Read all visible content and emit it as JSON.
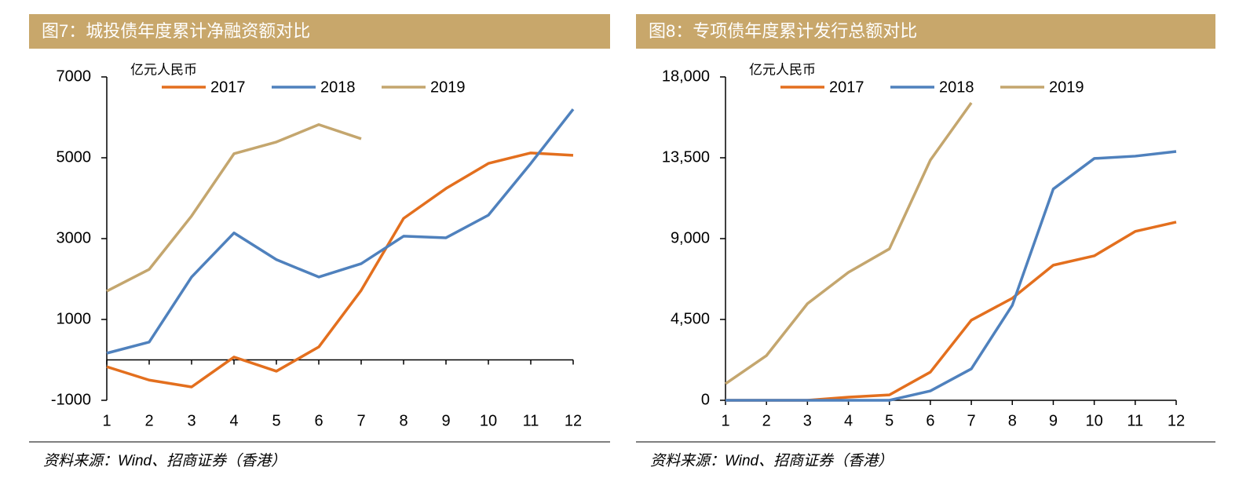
{
  "chart_data": [
    {
      "type": "line",
      "title": "图7：城投债年度累计净融资额对比",
      "unit_label": "亿元人民币",
      "source": "资料来源：Wind、招商证券（香港）",
      "categories": [
        "1",
        "2",
        "3",
        "4",
        "5",
        "6",
        "7",
        "8",
        "9",
        "10",
        "11",
        "12"
      ],
      "series": [
        {
          "name": "2017",
          "color": "#e36f1e",
          "values": [
            -170,
            -500,
            -670,
            70,
            -280,
            320,
            1720,
            3500,
            4240,
            4860,
            5120,
            5060
          ]
        },
        {
          "name": "2018",
          "color": "#4f81bd",
          "values": [
            165,
            440,
            2050,
            3140,
            2480,
            2050,
            2380,
            3060,
            3020,
            3580,
            4860,
            6200
          ]
        },
        {
          "name": "2019",
          "color": "#c4a66e",
          "values": [
            1700,
            2240,
            3560,
            5100,
            5390,
            5820,
            5470,
            null,
            null,
            null,
            null,
            null
          ]
        }
      ],
      "ylim": [
        -1000,
        7000
      ],
      "yticks": [
        -1000,
        1000,
        3000,
        5000,
        7000
      ]
    },
    {
      "type": "line",
      "title": "图8：专项债年度累计发行总额对比",
      "unit_label": "亿元人民币",
      "source": "资料来源：Wind、招商证券（香港）",
      "categories": [
        "1",
        "2",
        "3",
        "4",
        "5",
        "6",
        "7",
        "8",
        "9",
        "10",
        "11",
        "12"
      ],
      "series": [
        {
          "name": "2017",
          "color": "#e36f1e",
          "values": [
            0,
            0,
            0,
            175,
            300,
            1570,
            4460,
            5680,
            7520,
            8040,
            9400,
            9920
          ]
        },
        {
          "name": "2018",
          "color": "#4f81bd",
          "values": [
            0,
            0,
            0,
            0,
            0,
            520,
            1750,
            5290,
            11760,
            13460,
            13590,
            13850
          ]
        },
        {
          "name": "2019",
          "color": "#c4a66e",
          "values": [
            920,
            2490,
            5380,
            7120,
            8430,
            13370,
            16560,
            null,
            null,
            null,
            null,
            null
          ]
        }
      ],
      "ylim": [
        0,
        18000
      ],
      "yticks": [
        0,
        {
          "value": 4500,
          "label": "4,500"
        },
        {
          "value": 9000,
          "label": "9,000"
        },
        {
          "value": 13500,
          "label": "13,500"
        },
        {
          "value": 18000,
          "label": "18,000"
        }
      ]
    }
  ]
}
